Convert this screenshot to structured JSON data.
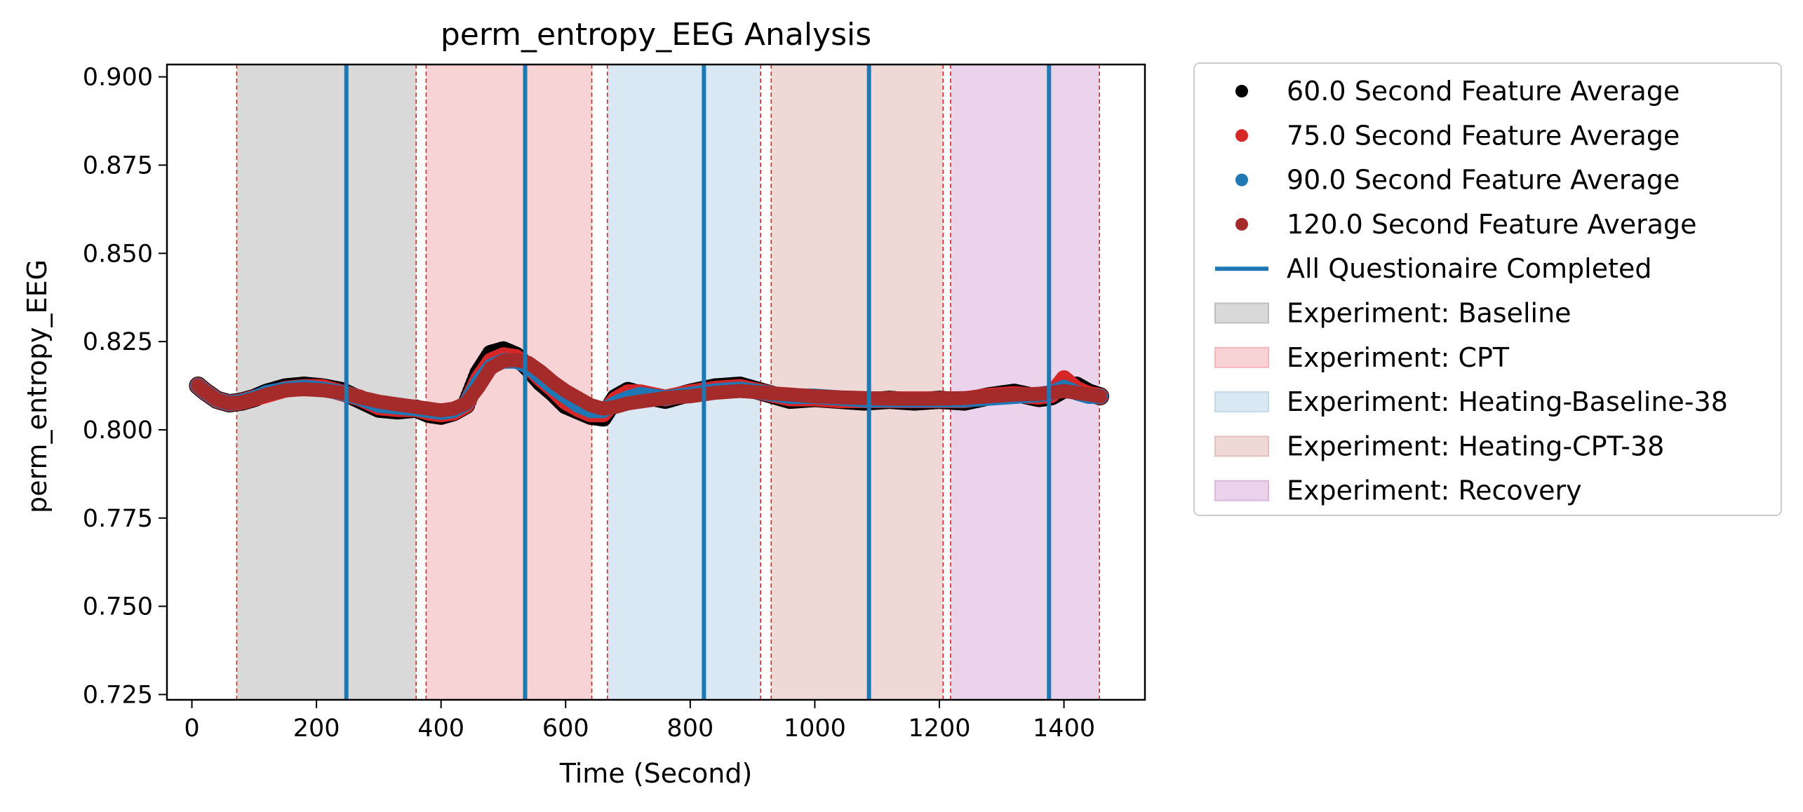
{
  "chart_data": {
    "type": "scatter",
    "title": "perm_entropy_EEG Analysis",
    "xlabel": "Time (Second)",
    "ylabel": "perm_entropy_EEG",
    "xlim": [
      -40,
      1530
    ],
    "ylim": [
      0.7235,
      0.9035
    ],
    "xticks": [
      0,
      200,
      400,
      600,
      800,
      1000,
      1200,
      1400
    ],
    "xtick_labels": [
      "0",
      "200",
      "400",
      "600",
      "800",
      "1000",
      "1200",
      "1400"
    ],
    "yticks": [
      0.725,
      0.75,
      0.775,
      0.8,
      0.825,
      0.85,
      0.875,
      0.9
    ],
    "ytick_labels": [
      "0.725",
      "0.750",
      "0.775",
      "0.800",
      "0.825",
      "0.850",
      "0.875",
      "0.900"
    ],
    "grid": false,
    "legend_position": "outside-right",
    "series": [
      {
        "name": "60.0 Second Feature Average",
        "color": "#000000",
        "x": [
          10,
          20,
          40,
          60,
          80,
          100,
          120,
          150,
          180,
          210,
          240,
          270,
          300,
          330,
          360,
          380,
          400,
          420,
          440,
          460,
          480,
          500,
          520,
          540,
          560,
          580,
          600,
          620,
          640,
          660,
          680,
          700,
          720,
          760,
          800,
          840,
          880,
          920,
          960,
          1000,
          1040,
          1080,
          1120,
          1160,
          1200,
          1240,
          1280,
          1320,
          1360,
          1380,
          1400,
          1420,
          1440,
          1458
        ],
        "y": [
          0.8125,
          0.811,
          0.8085,
          0.8075,
          0.808,
          0.809,
          0.8105,
          0.812,
          0.8125,
          0.812,
          0.811,
          0.8085,
          0.806,
          0.8055,
          0.806,
          0.8045,
          0.804,
          0.805,
          0.807,
          0.816,
          0.8215,
          0.8225,
          0.821,
          0.8175,
          0.8135,
          0.8105,
          0.807,
          0.8055,
          0.804,
          0.8035,
          0.809,
          0.811,
          0.81,
          0.8085,
          0.8105,
          0.812,
          0.8125,
          0.8105,
          0.8085,
          0.809,
          0.8085,
          0.808,
          0.8085,
          0.808,
          0.8085,
          0.808,
          0.8095,
          0.8105,
          0.809,
          0.8095,
          0.8115,
          0.8125,
          0.8105,
          0.8095
        ]
      },
      {
        "name": "75.0 Second Feature Average",
        "color": "#d62728",
        "x": [
          10,
          20,
          40,
          60,
          80,
          100,
          120,
          150,
          180,
          210,
          240,
          270,
          300,
          330,
          360,
          380,
          400,
          420,
          440,
          460,
          480,
          500,
          520,
          540,
          560,
          580,
          600,
          620,
          640,
          660,
          680,
          700,
          720,
          760,
          800,
          840,
          880,
          920,
          960,
          1000,
          1040,
          1080,
          1120,
          1160,
          1200,
          1240,
          1280,
          1320,
          1360,
          1380,
          1400,
          1420,
          1440,
          1458
        ],
        "y": [
          0.8125,
          0.811,
          0.8085,
          0.8075,
          0.808,
          0.809,
          0.81,
          0.8115,
          0.812,
          0.812,
          0.8105,
          0.809,
          0.8065,
          0.806,
          0.806,
          0.805,
          0.8045,
          0.805,
          0.807,
          0.8145,
          0.8195,
          0.821,
          0.8205,
          0.818,
          0.8145,
          0.8115,
          0.808,
          0.806,
          0.8045,
          0.8045,
          0.8085,
          0.8105,
          0.8105,
          0.809,
          0.8105,
          0.8115,
          0.812,
          0.8105,
          0.809,
          0.809,
          0.8085,
          0.8085,
          0.8085,
          0.8085,
          0.8085,
          0.8085,
          0.8095,
          0.81,
          0.8095,
          0.81,
          0.8145,
          0.8115,
          0.81,
          0.8095
        ]
      },
      {
        "name": "90.0 Second Feature Average",
        "color": "#1f77b4",
        "x": [
          10,
          20,
          40,
          60,
          80,
          100,
          120,
          150,
          180,
          210,
          240,
          270,
          300,
          330,
          360,
          380,
          400,
          420,
          440,
          460,
          480,
          500,
          520,
          540,
          560,
          580,
          600,
          620,
          640,
          660,
          680,
          700,
          720,
          760,
          800,
          840,
          880,
          920,
          960,
          1000,
          1040,
          1080,
          1120,
          1160,
          1200,
          1240,
          1280,
          1320,
          1360,
          1380,
          1400,
          1420,
          1440,
          1458
        ],
        "y": [
          0.8125,
          0.811,
          0.8085,
          0.8075,
          0.808,
          0.809,
          0.8105,
          0.8115,
          0.812,
          0.8115,
          0.8105,
          0.809,
          0.807,
          0.8065,
          0.806,
          0.8055,
          0.805,
          0.8055,
          0.8075,
          0.8135,
          0.818,
          0.8195,
          0.8195,
          0.818,
          0.815,
          0.812,
          0.8095,
          0.807,
          0.8055,
          0.8055,
          0.8075,
          0.809,
          0.81,
          0.809,
          0.81,
          0.811,
          0.8115,
          0.8105,
          0.8095,
          0.8095,
          0.809,
          0.8085,
          0.8085,
          0.8085,
          0.8085,
          0.8085,
          0.809,
          0.8095,
          0.81,
          0.8105,
          0.812,
          0.8105,
          0.8095,
          0.8095
        ]
      },
      {
        "name": "120.0 Second Feature Average",
        "color": "#a52a2a",
        "x": [
          10,
          20,
          40,
          60,
          80,
          100,
          120,
          150,
          180,
          210,
          240,
          270,
          300,
          330,
          360,
          380,
          400,
          420,
          440,
          460,
          480,
          500,
          520,
          540,
          560,
          580,
          600,
          620,
          640,
          660,
          680,
          700,
          720,
          760,
          800,
          840,
          880,
          920,
          960,
          1000,
          1040,
          1080,
          1120,
          1160,
          1200,
          1240,
          1280,
          1320,
          1360,
          1380,
          1400,
          1420,
          1440,
          1458
        ],
        "y": [
          0.8125,
          0.811,
          0.8085,
          0.8075,
          0.8078,
          0.8088,
          0.81,
          0.8112,
          0.8115,
          0.8112,
          0.8105,
          0.8092,
          0.808,
          0.8072,
          0.8065,
          0.806,
          0.8055,
          0.806,
          0.8075,
          0.812,
          0.8175,
          0.8195,
          0.8198,
          0.819,
          0.8165,
          0.8135,
          0.811,
          0.809,
          0.807,
          0.806,
          0.8065,
          0.8075,
          0.808,
          0.809,
          0.8095,
          0.8105,
          0.811,
          0.8105,
          0.81,
          0.8095,
          0.8092,
          0.809,
          0.8088,
          0.8088,
          0.8088,
          0.809,
          0.8095,
          0.81,
          0.8102,
          0.8105,
          0.811,
          0.8105,
          0.81,
          0.8095
        ]
      }
    ],
    "questionnaire": {
      "name": "All Questionaire Completed",
      "color": "#1f77b4",
      "x": [
        248,
        535,
        822,
        1087,
        1376
      ]
    },
    "phases": [
      {
        "name": "Experiment: Baseline",
        "start": 72,
        "end": 360,
        "color": "#bfbfbf"
      },
      {
        "name": "Experiment: CPT",
        "start": 376,
        "end": 642,
        "color": "#f4b6b9"
      },
      {
        "name": "Experiment: Heating-Baseline-38",
        "start": 667,
        "end": 913,
        "color": "#c2d9ec"
      },
      {
        "name": "Experiment: Heating-CPT-38",
        "start": 930,
        "end": 1206,
        "color": "#e4c0bd"
      },
      {
        "name": "Experiment: Recovery",
        "start": 1218,
        "end": 1457,
        "color": "#dcb6de"
      }
    ],
    "boundary_lines": [
      72,
      360,
      376,
      642,
      667,
      913,
      930,
      1206,
      1218,
      1457
    ],
    "boundary_color": "#d62728"
  }
}
